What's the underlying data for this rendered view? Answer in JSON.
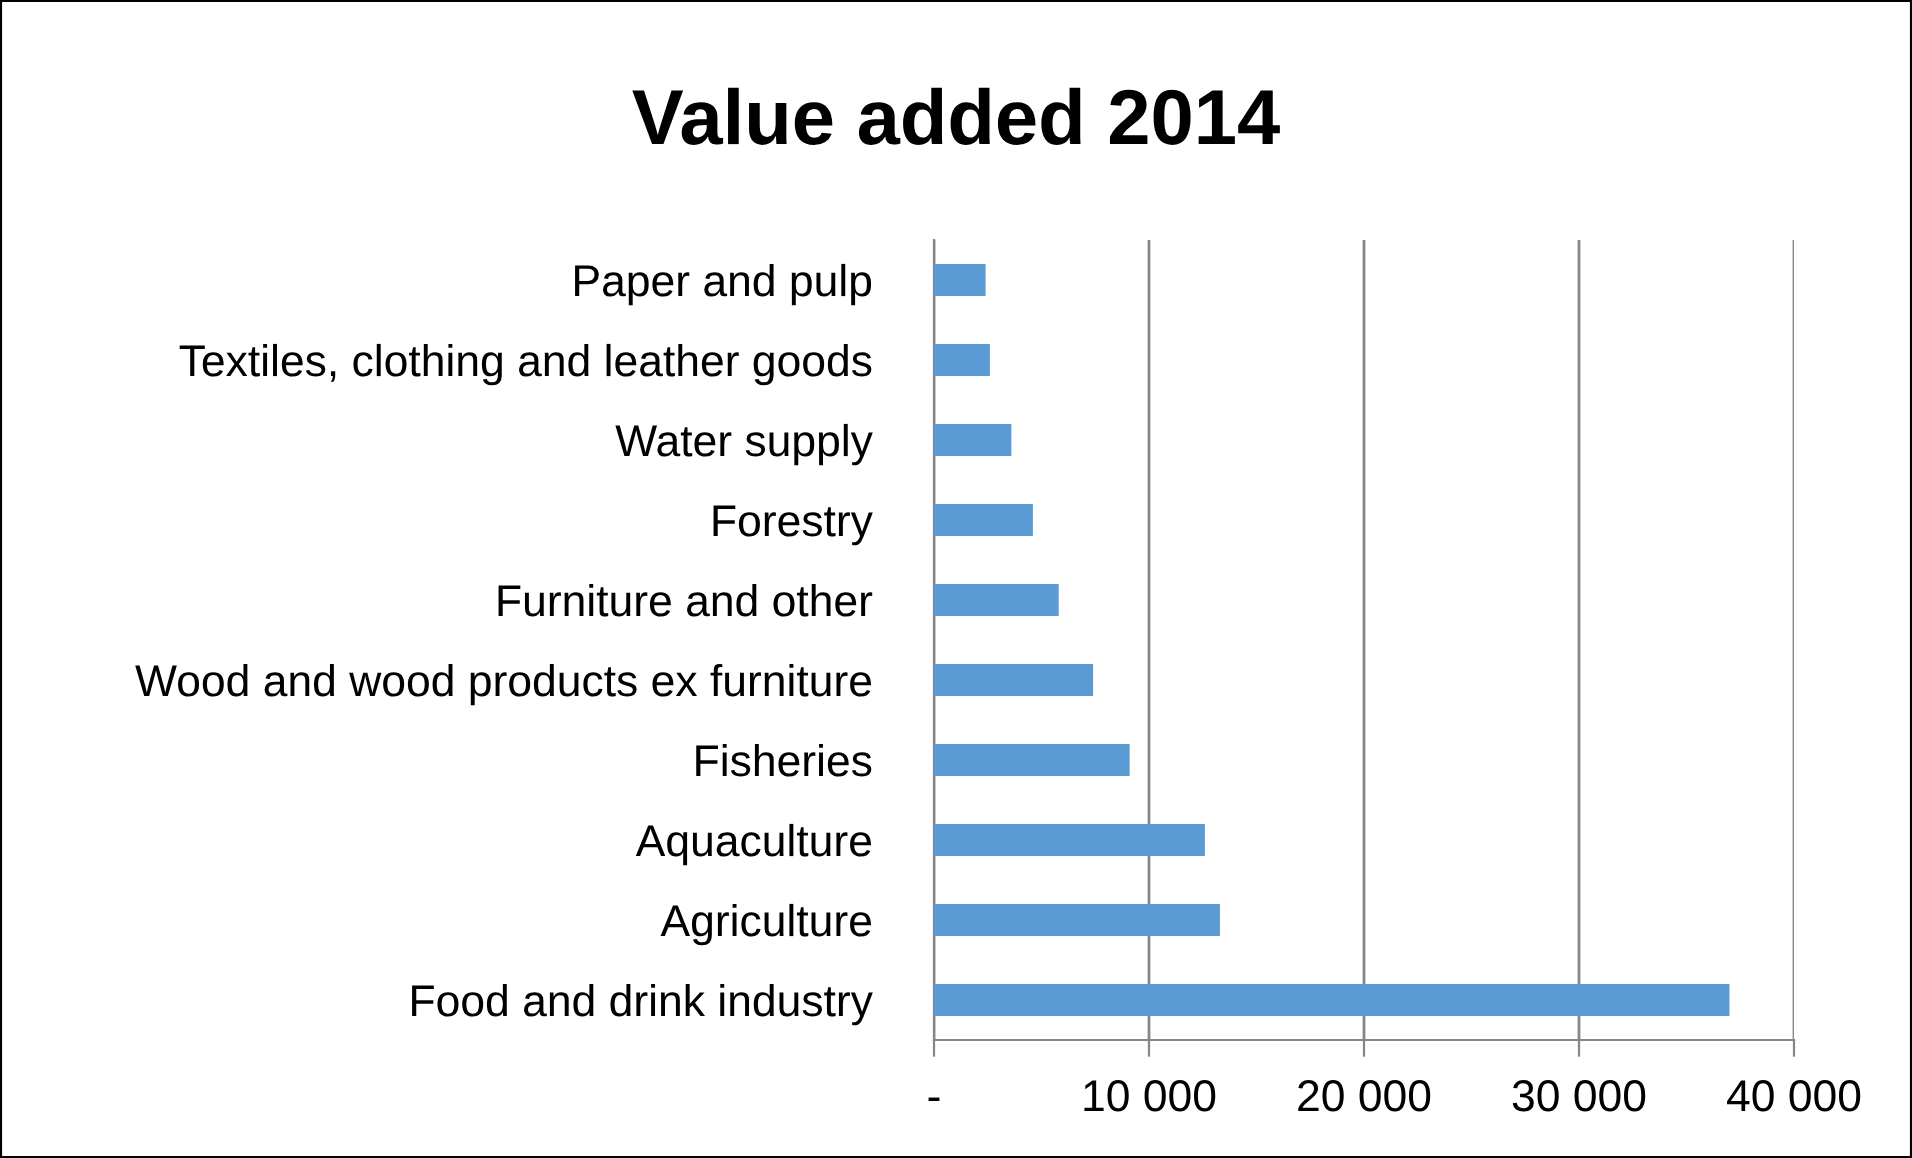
{
  "chart_data": {
    "type": "bar",
    "orientation": "horizontal",
    "title": "Value added 2014",
    "categories": [
      "Paper and pulp",
      "Textiles, clothing and leather goods",
      "Water supply",
      "Forestry",
      "Furniture and other",
      "Wood and wood products ex furniture",
      "Fisheries",
      "Aquaculture",
      "Agriculture",
      "Food and drink industry"
    ],
    "values": [
      2400,
      2600,
      3600,
      4600,
      5800,
      7400,
      9100,
      12600,
      13300,
      37000
    ],
    "color": "#5b9bd5",
    "xlim": [
      0,
      40000
    ],
    "xticks": [
      {
        "value": 0,
        "label": "-"
      },
      {
        "value": 10000,
        "label": "10 000"
      },
      {
        "value": 20000,
        "label": "20 000"
      },
      {
        "value": 30000,
        "label": "30 000"
      },
      {
        "value": 40000,
        "label": "40 000"
      }
    ],
    "grid": "x",
    "legend": false
  }
}
